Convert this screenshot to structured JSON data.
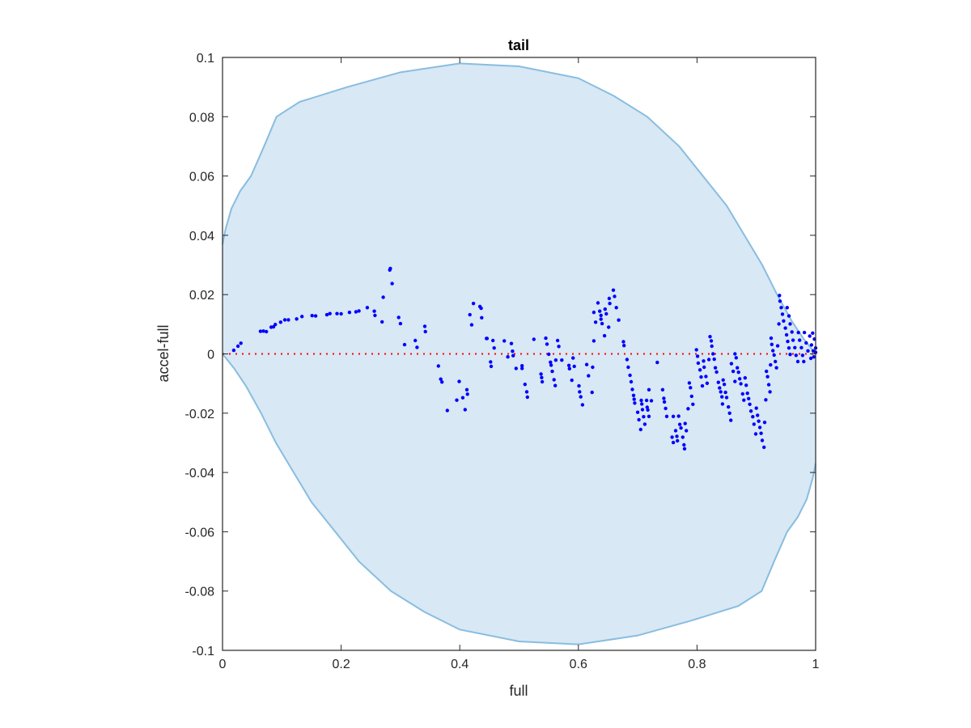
{
  "chart_data": {
    "type": "scatter",
    "title": "tail",
    "xlabel": "full",
    "ylabel": "accel-full",
    "xlim": [
      0,
      1
    ],
    "ylim": [
      -0.1,
      0.1
    ],
    "xticks": [
      "0",
      "0.2",
      "0.4",
      "0.6",
      "0.8",
      "1"
    ],
    "xtick_values": [
      0,
      0.2,
      0.4,
      0.6,
      0.8,
      1
    ],
    "yticks": [
      "-0.1",
      "-0.08",
      "-0.06",
      "-0.04",
      "-0.02",
      "0",
      "0.02",
      "0.04",
      "0.06",
      "0.08",
      "0.1"
    ],
    "ytick_values": [
      -0.1,
      -0.08,
      -0.06,
      -0.04,
      -0.02,
      0,
      0.02,
      0.04,
      0.06,
      0.08,
      0.1
    ],
    "grid": false,
    "colors": {
      "points": "#0000ff",
      "region_fill": "#d8e8f4",
      "region_edge": "#88bde0",
      "zero_line": "#ff0000",
      "axis": "#262626"
    },
    "reference_line": {
      "y": 0,
      "style": "dotted"
    },
    "region_upper_boundary": [
      [
        0,
        0.037
      ],
      [
        0.005,
        0.042
      ],
      [
        0.015,
        0.049
      ],
      [
        0.03,
        0.055
      ],
      [
        0.048,
        0.06
      ],
      [
        0.07,
        0.07
      ],
      [
        0.091,
        0.08
      ],
      [
        0.13,
        0.085
      ],
      [
        0.21,
        0.09
      ],
      [
        0.3,
        0.095
      ],
      [
        0.4,
        0.098
      ],
      [
        0.5,
        0.097
      ],
      [
        0.6,
        0.093
      ],
      [
        0.66,
        0.087
      ],
      [
        0.716,
        0.08
      ],
      [
        0.77,
        0.07
      ],
      [
        0.81,
        0.06
      ],
      [
        0.85,
        0.05
      ],
      [
        0.88,
        0.04
      ],
      [
        0.91,
        0.03
      ],
      [
        0.935,
        0.02
      ],
      [
        0.96,
        0.011
      ],
      [
        0.98,
        0.005
      ],
      [
        1,
        0
      ]
    ],
    "region_lower_boundary_rule": "point-symmetric about (0.5, 0)",
    "points": [
      [
        0.019,
        0.0012
      ],
      [
        0.026,
        0.0026
      ],
      [
        0.031,
        0.0036
      ],
      [
        0.064,
        0.0076
      ],
      [
        0.069,
        0.0077
      ],
      [
        0.074,
        0.0075
      ],
      [
        0.082,
        0.009
      ],
      [
        0.086,
        0.0091
      ],
      [
        0.089,
        0.0099
      ],
      [
        0.098,
        0.0107
      ],
      [
        0.105,
        0.0115
      ],
      [
        0.111,
        0.0115
      ],
      [
        0.125,
        0.0118
      ],
      [
        0.134,
        0.0126
      ],
      [
        0.151,
        0.0129
      ],
      [
        0.157,
        0.0128
      ],
      [
        0.176,
        0.0132
      ],
      [
        0.181,
        0.0136
      ],
      [
        0.193,
        0.0136
      ],
      [
        0.2,
        0.0135
      ],
      [
        0.214,
        0.014
      ],
      [
        0.225,
        0.0142
      ],
      [
        0.23,
        0.0145
      ],
      [
        0.244,
        0.0156
      ],
      [
        0.256,
        0.0144
      ],
      [
        0.257,
        0.013
      ],
      [
        0.269,
        0.0108
      ],
      [
        0.271,
        0.0191
      ],
      [
        0.282,
        0.0283
      ],
      [
        0.283,
        0.0288
      ],
      [
        0.286,
        0.0237
      ],
      [
        0.297,
        0.0123
      ],
      [
        0.3,
        0.0102
      ],
      [
        0.307,
        0.0031
      ],
      [
        0.325,
        0.0045
      ],
      [
        0.328,
        0.0022
      ],
      [
        0.341,
        0.0093
      ],
      [
        0.342,
        0.0075
      ],
      [
        0.364,
        -0.0041
      ],
      [
        0.368,
        -0.0085
      ],
      [
        0.37,
        -0.0095
      ],
      [
        0.379,
        -0.0191
      ],
      [
        0.395,
        -0.0156
      ],
      [
        0.399,
        -0.0093
      ],
      [
        0.405,
        -0.0148
      ],
      [
        0.409,
        -0.0188
      ],
      [
        0.412,
        -0.0121
      ],
      [
        0.413,
        -0.0136
      ],
      [
        0.417,
        0.0132
      ],
      [
        0.42,
        0.0098
      ],
      [
        0.423,
        0.017
      ],
      [
        0.434,
        0.016
      ],
      [
        0.436,
        0.0154
      ],
      [
        0.437,
        0.0122
      ],
      [
        0.445,
        0.0052
      ],
      [
        0.446,
        0.0052
      ],
      [
        0.456,
        0.0045
      ],
      [
        0.458,
        0.002
      ],
      [
        0.452,
        -0.0027
      ],
      [
        0.453,
        -0.0042
      ],
      [
        0.475,
        0.0044
      ],
      [
        0.487,
        0.0035
      ],
      [
        0.489,
        0.0009
      ],
      [
        0.481,
        -0.001
      ],
      [
        0.49,
        -0.0006
      ],
      [
        0.495,
        -0.0049
      ],
      [
        0.505,
        -0.004
      ],
      [
        0.505,
        -0.0049
      ],
      [
        0.51,
        -0.0103
      ],
      [
        0.513,
        -0.0128
      ],
      [
        0.514,
        -0.0146
      ],
      [
        0.525,
        0.0049
      ],
      [
        0.537,
        -0.0068
      ],
      [
        0.538,
        -0.008
      ],
      [
        0.539,
        -0.0094
      ],
      [
        0.545,
        0.0053
      ],
      [
        0.547,
        0.0033
      ],
      [
        0.55,
        -0.0001
      ],
      [
        0.553,
        -0.0028
      ],
      [
        0.554,
        -0.0038
      ],
      [
        0.556,
        -0.0059
      ],
      [
        0.559,
        -0.0087
      ],
      [
        0.561,
        -0.0107
      ],
      [
        0.562,
        -0.0021
      ],
      [
        0.565,
        0.0045
      ],
      [
        0.567,
        0.0025
      ],
      [
        0.572,
        -0.0021
      ],
      [
        0.584,
        -0.0039
      ],
      [
        0.585,
        -0.005
      ],
      [
        0.589,
        -0.0089
      ],
      [
        0.591,
        -0.0014
      ],
      [
        0.593,
        -0.0042
      ],
      [
        0.601,
        -0.0108
      ],
      [
        0.602,
        -0.0128
      ],
      [
        0.604,
        -0.0145
      ],
      [
        0.607,
        -0.0172
      ],
      [
        0.614,
        -0.0036
      ],
      [
        0.617,
        -0.0074
      ],
      [
        0.623,
        -0.013
      ],
      [
        0.624,
        -0.0045
      ],
      [
        0.626,
        0.0044
      ],
      [
        0.626,
        0.014
      ],
      [
        0.629,
        0.0107
      ],
      [
        0.633,
        0.0172
      ],
      [
        0.636,
        0.0144
      ],
      [
        0.638,
        0.013
      ],
      [
        0.638,
        0.0117
      ],
      [
        0.64,
        0.0102
      ],
      [
        0.644,
        0.0061
      ],
      [
        0.645,
        0.0151
      ],
      [
        0.647,
        0.0135
      ],
      [
        0.651,
        0.009
      ],
      [
        0.652,
        0.0187
      ],
      [
        0.653,
        0.017
      ],
      [
        0.659,
        0.0215
      ],
      [
        0.661,
        0.0194
      ],
      [
        0.664,
        0.0156
      ],
      [
        0.668,
        0.0114
      ],
      [
        0.676,
        0.0041
      ],
      [
        0.677,
        0.0028
      ],
      [
        0.682,
        -0.0019
      ],
      [
        0.684,
        -0.0045
      ],
      [
        0.687,
        -0.0072
      ],
      [
        0.689,
        -0.0094
      ],
      [
        0.691,
        -0.012
      ],
      [
        0.693,
        -0.014
      ],
      [
        0.694,
        -0.0153
      ],
      [
        0.695,
        -0.0166
      ],
      [
        0.7,
        -0.0197
      ],
      [
        0.702,
        -0.0222
      ],
      [
        0.705,
        -0.0255
      ],
      [
        0.706,
        -0.0157
      ],
      [
        0.707,
        -0.0169
      ],
      [
        0.708,
        -0.0188
      ],
      [
        0.71,
        -0.0212
      ],
      [
        0.712,
        -0.0237
      ],
      [
        0.715,
        -0.0157
      ],
      [
        0.716,
        -0.018
      ],
      [
        0.717,
        -0.0189
      ],
      [
        0.719,
        -0.0211
      ],
      [
        0.719,
        -0.0121
      ],
      [
        0.723,
        -0.0158
      ],
      [
        0.733,
        -0.0029
      ],
      [
        0.742,
        -0.0121
      ],
      [
        0.744,
        -0.015
      ],
      [
        0.745,
        -0.0162
      ],
      [
        0.747,
        -0.0184
      ],
      [
        0.749,
        -0.0211
      ],
      [
        0.758,
        -0.0281
      ],
      [
        0.76,
        -0.0299
      ],
      [
        0.76,
        -0.0211
      ],
      [
        0.764,
        -0.0259
      ],
      [
        0.766,
        -0.0278
      ],
      [
        0.767,
        -0.0293
      ],
      [
        0.769,
        -0.021
      ],
      [
        0.771,
        -0.0238
      ],
      [
        0.773,
        -0.025
      ],
      [
        0.776,
        -0.0281
      ],
      [
        0.778,
        -0.0307
      ],
      [
        0.779,
        -0.032
      ],
      [
        0.78,
        -0.0235
      ],
      [
        0.782,
        -0.0259
      ],
      [
        0.785,
        -0.0185
      ],
      [
        0.787,
        -0.0098
      ],
      [
        0.789,
        -0.0114
      ],
      [
        0.791,
        -0.0143
      ],
      [
        0.793,
        -0.017
      ],
      [
        0.799,
        0.0014
      ],
      [
        0.801,
        -0.0008
      ],
      [
        0.802,
        -0.0031
      ],
      [
        0.805,
        -0.0054
      ],
      [
        0.807,
        -0.0078
      ],
      [
        0.809,
        -0.0108
      ],
      [
        0.811,
        -0.0024
      ],
      [
        0.812,
        -0.0045
      ],
      [
        0.815,
        -0.0076
      ],
      [
        0.817,
        -0.0099
      ],
      [
        0.82,
        -0.0019
      ],
      [
        0.822,
        0.0058
      ],
      [
        0.824,
        0.0044
      ],
      [
        0.825,
        0.0026
      ],
      [
        0.827,
        0.0
      ],
      [
        0.829,
        -0.0018
      ],
      [
        0.831,
        -0.0047
      ],
      [
        0.833,
        -0.0061
      ],
      [
        0.836,
        -0.0096
      ],
      [
        0.838,
        -0.0115
      ],
      [
        0.84,
        -0.0128
      ],
      [
        0.842,
        -0.0145
      ],
      [
        0.843,
        -0.0169
      ],
      [
        0.844,
        -0.0088
      ],
      [
        0.846,
        -0.0103
      ],
      [
        0.848,
        -0.013
      ],
      [
        0.85,
        -0.0147
      ],
      [
        0.853,
        -0.0179
      ],
      [
        0.855,
        -0.02
      ],
      [
        0.857,
        -0.0224
      ],
      [
        0.858,
        -0.0033
      ],
      [
        0.861,
        -0.0059
      ],
      [
        0.864,
        -0.0093
      ],
      [
        0.864,
        0.0
      ],
      [
        0.866,
        -0.0013
      ],
      [
        0.868,
        -0.0047
      ],
      [
        0.87,
        -0.0062
      ],
      [
        0.872,
        -0.0084
      ],
      [
        0.874,
        -0.0101
      ],
      [
        0.877,
        -0.0135
      ],
      [
        0.879,
        -0.0156
      ],
      [
        0.881,
        -0.0081
      ],
      [
        0.883,
        -0.0106
      ],
      [
        0.885,
        -0.0133
      ],
      [
        0.887,
        -0.0151
      ],
      [
        0.889,
        -0.017
      ],
      [
        0.891,
        -0.0193
      ],
      [
        0.894,
        -0.0212
      ],
      [
        0.896,
        -0.0237
      ],
      [
        0.899,
        -0.027
      ],
      [
        0.9,
        -0.0183
      ],
      [
        0.902,
        -0.0207
      ],
      [
        0.904,
        -0.0227
      ],
      [
        0.906,
        -0.0248
      ],
      [
        0.908,
        -0.0268
      ],
      [
        0.91,
        -0.0292
      ],
      [
        0.913,
        -0.0315
      ],
      [
        0.914,
        -0.0231
      ],
      [
        0.916,
        -0.0155
      ],
      [
        0.917,
        -0.0059
      ],
      [
        0.919,
        -0.0077
      ],
      [
        0.921,
        -0.0104
      ],
      [
        0.923,
        -0.0128
      ],
      [
        0.924,
        -0.0037
      ],
      [
        0.925,
        0.0053
      ],
      [
        0.926,
        0.0032
      ],
      [
        0.928,
        0.0011
      ],
      [
        0.93,
        -0.0004
      ],
      [
        0.932,
        -0.0026
      ],
      [
        0.934,
        -0.0047
      ],
      [
        0.936,
        0.0027
      ],
      [
        0.938,
        0.0101
      ],
      [
        0.939,
        0.0197
      ],
      [
        0.94,
        0.0178
      ],
      [
        0.942,
        0.0156
      ],
      [
        0.944,
        0.0134
      ],
      [
        0.946,
        0.0111
      ],
      [
        0.949,
        0.0087
      ],
      [
        0.951,
        0.0064
      ],
      [
        0.953,
        0.0042
      ],
      [
        0.955,
        0.002
      ],
      [
        0.957,
        -0.0002
      ],
      [
        0.952,
        0.0156
      ],
      [
        0.955,
        0.0128
      ],
      [
        0.957,
        0.0101
      ],
      [
        0.96,
        0.0074
      ],
      [
        0.962,
        0.0046
      ],
      [
        0.965,
        0.0021
      ],
      [
        0.967,
        -0.0005
      ],
      [
        0.97,
        -0.0026
      ],
      [
        0.971,
        0.0072
      ],
      [
        0.973,
        0.0046
      ],
      [
        0.976,
        0.0021
      ],
      [
        0.978,
        -0.0005
      ],
      [
        0.98,
        -0.0026
      ],
      [
        0.981,
        0.0072
      ],
      [
        0.984,
        0.0037
      ],
      [
        0.987,
        0.001
      ],
      [
        0.99,
        0.006
      ],
      [
        0.993,
        0.003
      ],
      [
        0.996,
        0.001
      ],
      [
        0.998,
        0.005
      ],
      [
        0.997,
        -0.001
      ],
      [
        1.0,
        0.002
      ],
      [
        1.0,
        0.0005
      ],
      [
        0.995,
        0.007
      ],
      [
        0.992,
        -0.0015
      ]
    ]
  }
}
